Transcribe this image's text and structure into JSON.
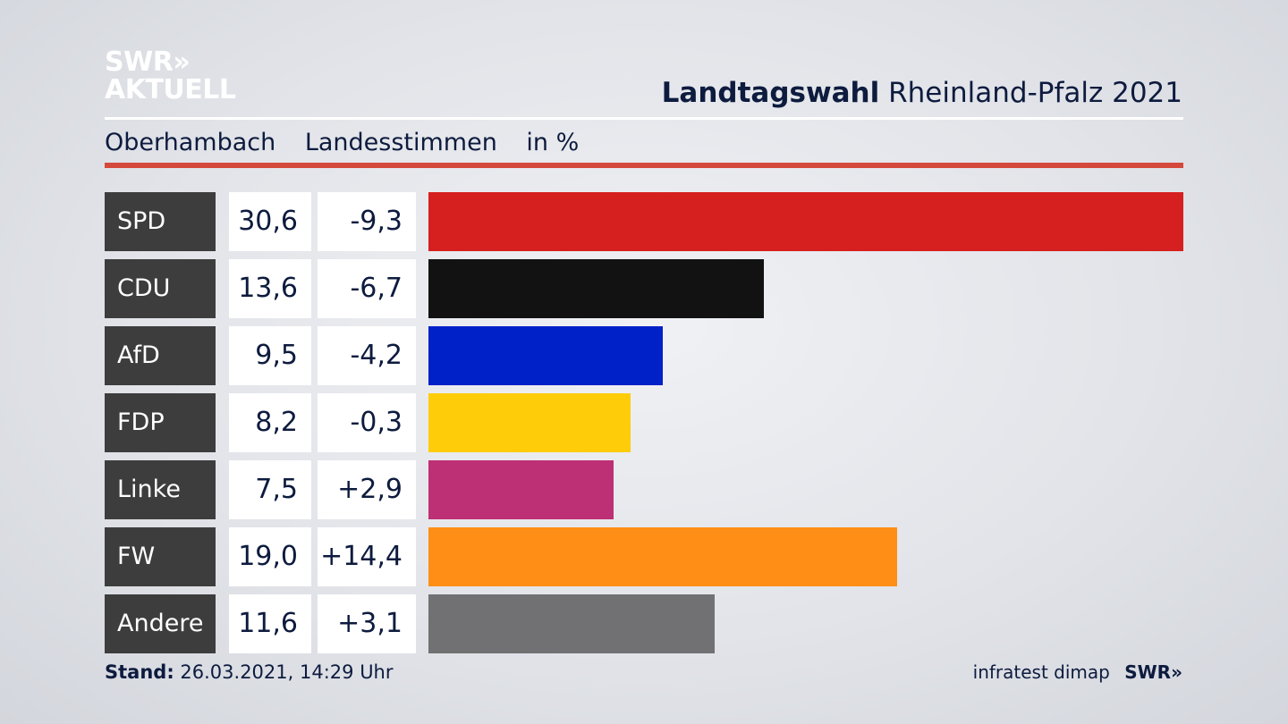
{
  "brand": {
    "logo_line1": "SWR",
    "logo_line2": "AKTUELL",
    "logo_arrows": "»"
  },
  "header": {
    "title_bold": "Landtagswahl",
    "title_rest": "Rheinland-Pfalz 2021"
  },
  "subheader": {
    "place": "Oberhambach",
    "vote_type": "Landesstimmen",
    "unit": "in %"
  },
  "colors": {
    "accent_rule": "#d4493b",
    "party_box": "#3d3d3d"
  },
  "chart_data": {
    "type": "bar",
    "orientation": "horizontal",
    "categories": [
      "SPD",
      "CDU",
      "AfD",
      "FDP",
      "Linke",
      "FW",
      "Andere"
    ],
    "values": [
      30.6,
      13.6,
      9.5,
      8.2,
      7.5,
      19.0,
      11.6
    ],
    "value_labels": [
      "30,6",
      "13,6",
      "9,5",
      "8,2",
      "7,5",
      "19,0",
      "11,6"
    ],
    "changes": [
      -9.3,
      -6.7,
      -4.2,
      -0.3,
      2.9,
      14.4,
      3.1
    ],
    "change_labels": [
      "-9,3",
      "-6,7",
      "-4,2",
      "-0,3",
      "+2,9",
      "+14,4",
      "+3,1"
    ],
    "bar_colors": [
      "#d61f1f",
      "#121212",
      "#0021c8",
      "#ffcc0a",
      "#be3075",
      "#ff8e17",
      "#717173"
    ],
    "grid": false
  },
  "footer": {
    "stand_label": "Stand:",
    "stand_value": "26.03.2021, 14:29 Uhr",
    "source": "infratest dimap",
    "brand": "SWR»"
  }
}
